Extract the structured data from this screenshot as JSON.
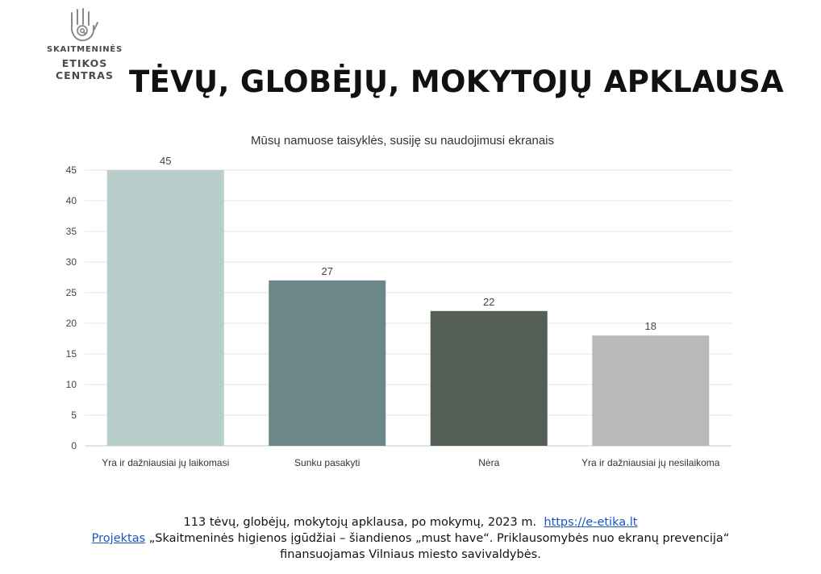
{
  "logo": {
    "line1": "SKAITMENINĖS",
    "line2": "ETIKOS CENTRAS"
  },
  "page_title": "TĖVŲ, GLOBĖJŲ, MOKYTOJŲ APKLAUSA",
  "chart_data": {
    "type": "bar",
    "title": "Mūsų namuose taisyklės, susiję su naudojimusi ekranais",
    "categories": [
      "Yra ir dažniausiai jų laikomasi",
      "Sunku pasakyti",
      "Nėra",
      "Yra ir dažniausiai jų nesilaikoma"
    ],
    "values": [
      45,
      27,
      22,
      18
    ],
    "colors": [
      "#b8cecb",
      "#6c8787",
      "#555f55",
      "#b9b9ba"
    ],
    "ylim": [
      0,
      45
    ],
    "yticks": [
      0,
      5,
      10,
      15,
      20,
      25,
      30,
      35,
      40,
      45
    ],
    "xlabel": "",
    "ylabel": "",
    "grid": true,
    "data_labels": true
  },
  "footer": {
    "line1_text": "113 tėvų, globėjų, mokytojų apklausa, po mokymų, 2023 m.",
    "line1_link": "https://e-etika.lt",
    "line2_link": "Projektas",
    "line2_text": "„Skaitmeninės higienos įgūdžiai – šiandienos „must have“. Priklausomybės nuo ekranų prevencija“",
    "line3_text": "finansuojamas Vilniaus miesto savivaldybės."
  }
}
